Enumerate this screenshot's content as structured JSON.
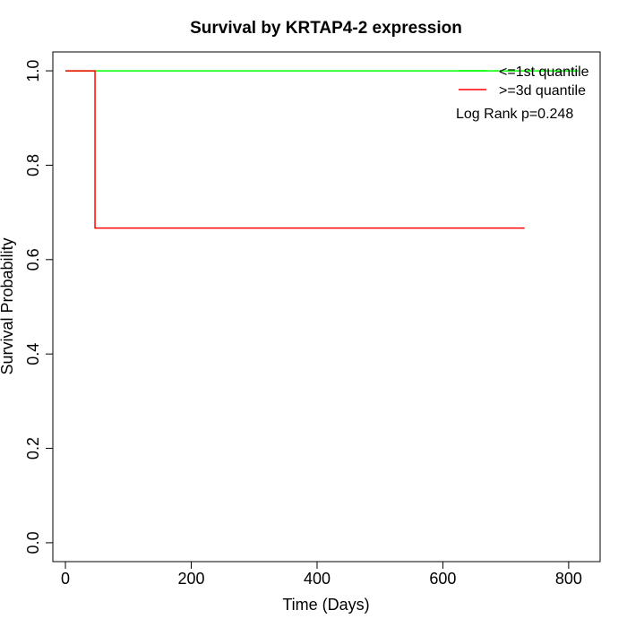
{
  "chart_data": {
    "type": "line",
    "title": "Survival by KRTAP4-2 expression",
    "xlabel": "Time (Days)",
    "ylabel": "Survival Probability",
    "xlim": [
      -20,
      850
    ],
    "ylim": [
      -0.04,
      1.04
    ],
    "xticks": [
      0,
      200,
      400,
      600,
      800
    ],
    "yticks": [
      0.0,
      0.2,
      0.4,
      0.6,
      0.8,
      1.0
    ],
    "ytick_labels": [
      "0.0",
      "0.2",
      "0.4",
      "0.6",
      "0.8",
      "1.0"
    ],
    "grid": false,
    "legend_position": "top-right",
    "series": [
      {
        "name": "<=1st quantile",
        "color": "#00ff00",
        "step": true,
        "x": [
          0,
          815
        ],
        "y": [
          1.0,
          1.0
        ]
      },
      {
        "name": ">=3d quantile",
        "color": "#ff0000",
        "step": true,
        "x": [
          0,
          47,
          47,
          730
        ],
        "y": [
          1.0,
          1.0,
          0.6667,
          0.6667
        ]
      }
    ],
    "annotation": "Log Rank p=0.248"
  }
}
